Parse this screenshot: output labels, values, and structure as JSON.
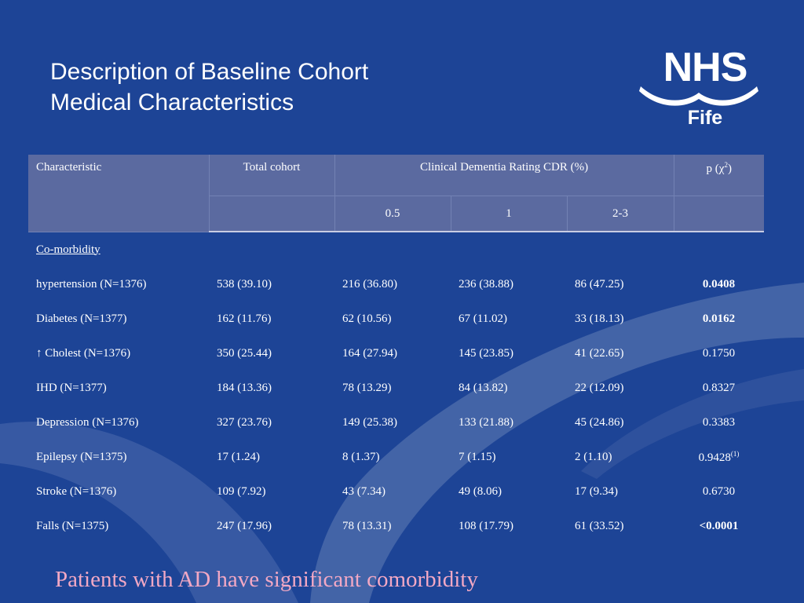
{
  "title": {
    "line1": "Description of Baseline Cohort",
    "line2": "Medical Characteristics"
  },
  "logo": {
    "nhs": "NHS",
    "fife": "Fife"
  },
  "table": {
    "headers": {
      "characteristic": "Characteristic",
      "total": "Total cohort",
      "cdr": "Clinical Dementia Rating CDR (%)",
      "p_label": "p (χ",
      "p_sup": "2",
      "p_close": ")"
    },
    "subheaders": [
      "0.5",
      "1",
      "2-3"
    ],
    "section": "Co-morbidity",
    "rows": [
      {
        "label": "hypertension (N=1376)",
        "total": "538 (39.10)",
        "cdr05": "216 (36.80)",
        "cdr1": "236 (38.88)",
        "cdr23": "86 (47.25)",
        "p": "0.0408"
      },
      {
        "label": "Diabetes (N=1377)",
        "total": "162 (11.76)",
        "cdr05": "62 (10.56)",
        "cdr1": "67 (11.02)",
        "cdr23": "33 (18.13)",
        "p": "0.0162"
      },
      {
        "label": "↑ Cholest (N=1376)",
        "total": "350 (25.44)",
        "cdr05": "164 (27.94)",
        "cdr1": "145 (23.85)",
        "cdr23": "41 (22.65)",
        "p": "0.1750"
      },
      {
        "label": "IHD (N=1377)",
        "total": "184 (13.36)",
        "cdr05": "78 (13.29)",
        "cdr1": "84 (13.82)",
        "cdr23": "22 (12.09)",
        "p": "0.8327"
      },
      {
        "label": "Depression (N=1376)",
        "total": "327 (23.76)",
        "cdr05": "149 (25.38)",
        "cdr1": "133 (21.88)",
        "cdr23": "45 (24.86)",
        "p": "0.3383"
      },
      {
        "label": "Epilepsy (N=1375)",
        "total": "17 (1.24)",
        "cdr05": "8 (1.37)",
        "cdr1": "7 (1.15)",
        "cdr23": "2 (1.10)",
        "p": "0.9428",
        "p_sup": "(1)"
      },
      {
        "label": "Stroke (N=1376)",
        "total": "109 (7.92)",
        "cdr05": "43 (7.34)",
        "cdr1": "49 (8.06)",
        "cdr23": "17 (9.34)",
        "p": "0.6730"
      },
      {
        "label": "Falls (N=1375)",
        "total": "247 (17.96)",
        "cdr05": "78 (13.31)",
        "cdr1": "108 (17.79)",
        "cdr23": "61 (33.52)",
        "p": "<0.0001"
      }
    ]
  },
  "footer": "Patients with AD have significant comorbidity",
  "colors": {
    "background": "#1d4496",
    "wave": "#4a6aaa",
    "header": "#5b6aa0",
    "footer_text": "#f2a8c4"
  }
}
